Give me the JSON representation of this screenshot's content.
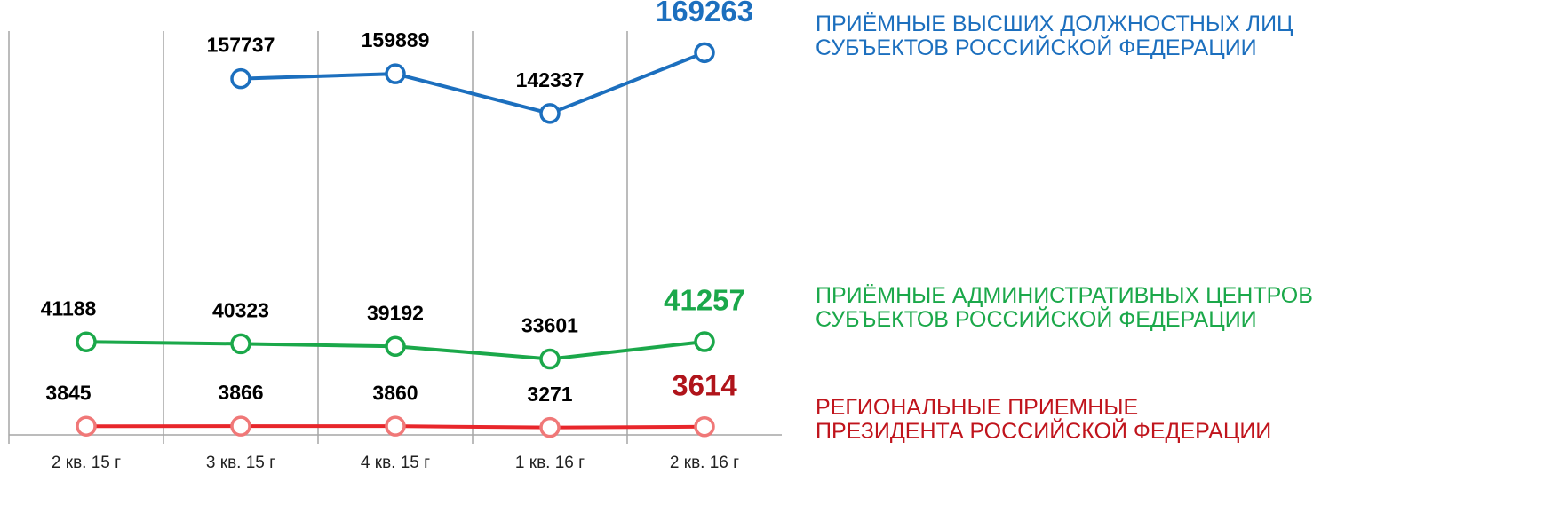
{
  "chart_data": {
    "type": "line",
    "categories": [
      "2 кв. 15 г",
      "3 кв. 15 г",
      "4 кв. 15 г",
      "1 кв. 16 г",
      "2 кв. 16 г"
    ],
    "ylim": [
      0,
      180000
    ],
    "series": [
      {
        "name": "ПРИЁМНЫЕ ВЫСШИХ ДОЛЖНОСТНЫХ ЛИЦ\nСУБЪЕКТОВ РОССИЙСКОЙ ФЕДЕРАЦИИ",
        "color": "#1c6fbe",
        "marker_color": "#1c6fbe",
        "highlight_color": "#1c6fbe",
        "values": [
          null,
          157737,
          159889,
          142337,
          169263
        ]
      },
      {
        "name": "ПРИЁМНЫЕ АДМИНИСТРАТИВНЫХ ЦЕНТРОВ\nСУБЪЕКТОВ РОССИЙСКОЙ ФЕДЕРАЦИИ",
        "color": "#1ba84a",
        "marker_color": "#1ba84a",
        "highlight_color": "#1ba84a",
        "values": [
          41188,
          40323,
          39192,
          33601,
          41257
        ]
      },
      {
        "name": "РЕГИОНАЛЬНЫЕ ПРИЕМНЫЕ\nПРЕЗИДЕНТА РОССИЙСКОЙ ФЕДЕРАЦИИ",
        "color": "#e8262b",
        "marker_color": "#f07878",
        "highlight_color": "#b0141b",
        "values": [
          3845,
          3866,
          3860,
          3271,
          3614
        ]
      }
    ]
  }
}
